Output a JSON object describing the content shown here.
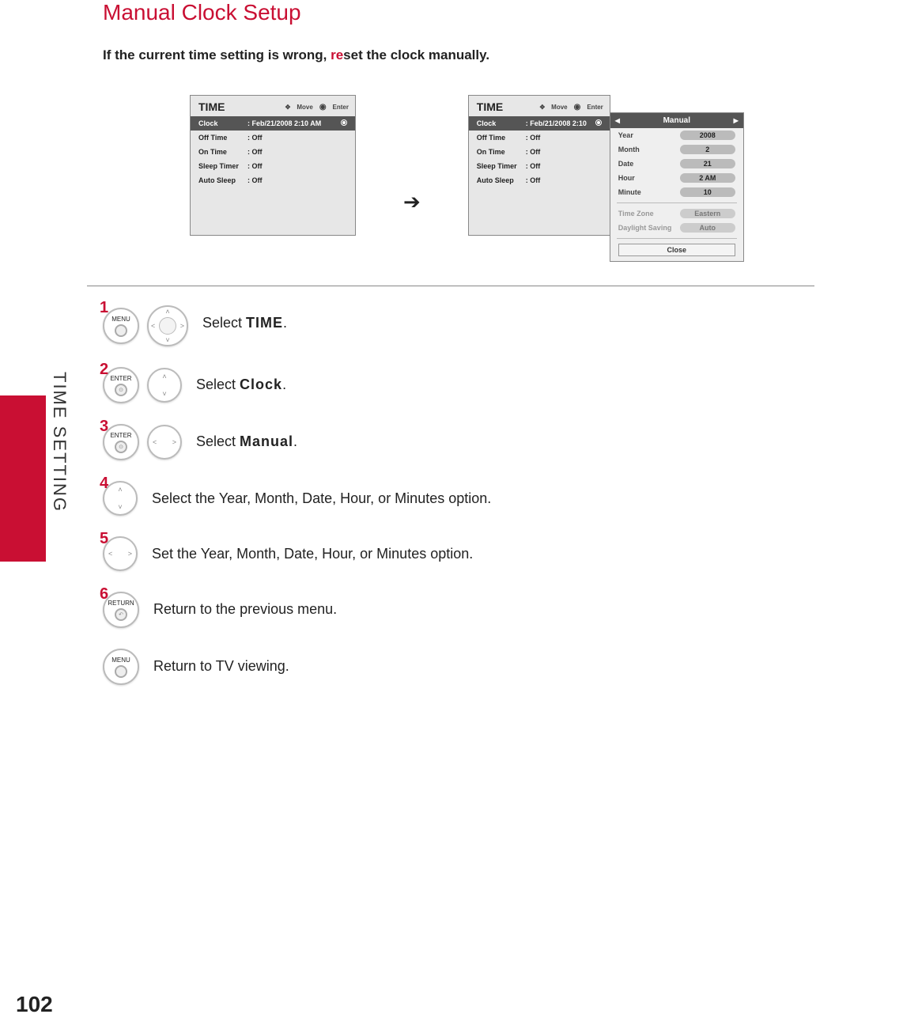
{
  "page": {
    "title": "Manual Clock Setup",
    "subtitle_pre": "If the current time setting is wrong, ",
    "subtitle_red": "re",
    "subtitle_post": "set the clock manually.",
    "side_label": "TIME SETTING",
    "page_number": "102"
  },
  "colors": {
    "accent": "#c90f33",
    "panel_bg": "#e7e7e7",
    "selected_bg": "#555555",
    "pill_bg": "#bbbbbb",
    "border": "#888888"
  },
  "osd_left": {
    "title": "TIME",
    "hint_move": "Move",
    "hint_enter": "Enter",
    "rows": [
      {
        "label": "Clock",
        "value": "Feb/21/2008 2:10 AM",
        "selected": true
      },
      {
        "label": "Off Time",
        "value": "Off"
      },
      {
        "label": "On Time",
        "value": "Off"
      },
      {
        "label": "Sleep Timer",
        "value": "Off"
      },
      {
        "label": "Auto Sleep",
        "value": "Off"
      }
    ]
  },
  "osd_right": {
    "title": "TIME",
    "hint_move": "Move",
    "hint_enter": "Enter",
    "rows": [
      {
        "label": "Clock",
        "value": "Feb/21/2008 2:10",
        "selected": true
      },
      {
        "label": "Off Time",
        "value": "Off"
      },
      {
        "label": "On Time",
        "value": "Off"
      },
      {
        "label": "Sleep Timer",
        "value": "Off"
      },
      {
        "label": "Auto Sleep",
        "value": "Off"
      }
    ]
  },
  "manual_panel": {
    "header": "Manual",
    "rows": [
      {
        "label": "Year",
        "value": "2008",
        "dim": false
      },
      {
        "label": "Month",
        "value": "2",
        "dim": false
      },
      {
        "label": "Date",
        "value": "21",
        "dim": false
      },
      {
        "label": "Hour",
        "value": "2 AM",
        "dim": false
      },
      {
        "label": "Minute",
        "value": "10",
        "dim": false
      }
    ],
    "rows2": [
      {
        "label": "Time Zone",
        "value": "Eastern",
        "dim": true
      },
      {
        "label": "Daylight Saving",
        "value": "Auto",
        "dim": true
      }
    ],
    "close": "Close"
  },
  "steps": [
    {
      "num": "1",
      "buttons": [
        {
          "type": "remote",
          "label": "MENU"
        },
        {
          "type": "dpad4"
        }
      ],
      "text_pre": "Select ",
      "text_bold": "TIME",
      "text_post": "."
    },
    {
      "num": "2",
      "buttons": [
        {
          "type": "remote",
          "label": "ENTER",
          "dot": true
        },
        {
          "type": "dpad_ud"
        }
      ],
      "text_pre": "Select ",
      "text_bold": "Clock",
      "text_post": "."
    },
    {
      "num": "3",
      "buttons": [
        {
          "type": "remote",
          "label": "ENTER",
          "dot": true
        },
        {
          "type": "dpad_lr"
        }
      ],
      "text_pre": "Select ",
      "text_bold": "Manual",
      "text_post": "."
    },
    {
      "num": "4",
      "buttons": [
        {
          "type": "dpad_ud"
        }
      ],
      "text_pre": "Select the Year, Month, Date, Hour, or Minutes option.",
      "text_bold": "",
      "text_post": ""
    },
    {
      "num": "5",
      "buttons": [
        {
          "type": "dpad_lr"
        }
      ],
      "text_pre": "Set the Year, Month, Date, Hour, or Minutes option.",
      "text_bold": "",
      "text_post": ""
    },
    {
      "num": "6",
      "buttons": [
        {
          "type": "remote",
          "label": "RETURN",
          "ret": true
        }
      ],
      "text_pre": "Return to the previous menu.",
      "text_bold": "",
      "text_post": ""
    },
    {
      "num": "",
      "buttons": [
        {
          "type": "remote",
          "label": "MENU"
        }
      ],
      "text_pre": "Return to TV viewing.",
      "text_bold": "",
      "text_post": ""
    }
  ]
}
